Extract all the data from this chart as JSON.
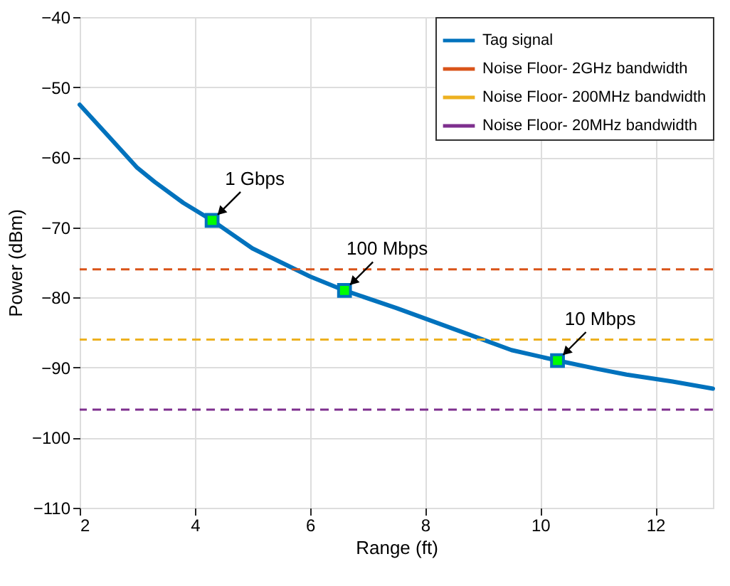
{
  "chart_data": {
    "type": "line",
    "xlabel": "Range (ft)",
    "ylabel": "Power (dBm)",
    "xlim": [
      2,
      13
    ],
    "xticks": [
      2,
      4,
      6,
      8,
      10,
      12
    ],
    "ylim": [
      -110,
      -40
    ],
    "yticks": [
      -110,
      -100,
      -90,
      -80,
      -70,
      -60,
      -50,
      -40
    ],
    "grid": true,
    "legend": "top right",
    "line_style": "solid",
    "series": [
      {
        "name": "Tag signal",
        "color": "#0072bd",
        "x": [
          2,
          2.5,
          3,
          3.3,
          3.8,
          4.3,
          5,
          5.5,
          6,
          6.6,
          7.5,
          8,
          9,
          9.5,
          10.3,
          11,
          11.5,
          12.3,
          13
        ],
        "values": [
          -52.5,
          -57,
          -61.5,
          -63.5,
          -66.5,
          -69,
          -73,
          -75,
          -77,
          -79,
          -81.5,
          -83,
          -86,
          -87.5,
          -89,
          -90.2,
          -91,
          -92,
          -93
        ]
      },
      {
        "color": "#00ff00",
        "type": "scatter",
        "marker": "square",
        "x": [
          4.3,
          6.6,
          10.3
        ],
        "values": [
          -69,
          -79,
          -89
        ]
      }
    ],
    "ref_lines": [
      {
        "axis": "y",
        "value": -76,
        "label": "Noise Floor- 2GHz bandwidth",
        "color": "#d95319",
        "line_style": "dashed"
      },
      {
        "axis": "y",
        "value": -86,
        "label": "Noise Floor- 200MHz bandwidth",
        "color": "#edb120",
        "line_style": "dashed"
      },
      {
        "axis": "y",
        "value": -96,
        "label": "Noise Floor- 20MHz bandwidth",
        "color": "#7e2f8e",
        "line_style": "dashed"
      }
    ],
    "annotations": [
      {
        "text": "1 Gbps",
        "x": 4.3,
        "y": -69
      },
      {
        "text": "100 Mbps",
        "x": 6.6,
        "y": -79
      },
      {
        "text": "10 Mbps",
        "x": 10.3,
        "y": -89
      }
    ]
  }
}
